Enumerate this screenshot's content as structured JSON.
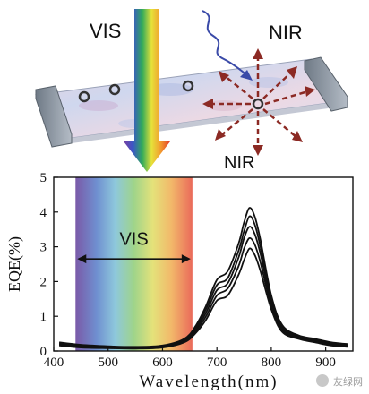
{
  "labels": {
    "vis_top": "VIS",
    "nir_top": "NIR",
    "nir_bottom": "NIR",
    "vis_band": "VIS",
    "watermark": "友绿网"
  },
  "colors": {
    "axis": "#111111",
    "curve": "#111111",
    "slab_top": "#e9d6e0",
    "slab_edge": "#8f9aa6",
    "nir_arrow": "#8c2a24",
    "squiggle": "#3a4aa8"
  },
  "chart_data": {
    "type": "line",
    "xlabel": "Wavelength(nm)",
    "ylabel": "EQE(%)",
    "xlim": [
      400,
      950
    ],
    "ylim": [
      0,
      5
    ],
    "xticks": [
      400,
      500,
      600,
      700,
      800,
      900
    ],
    "yticks": [
      0,
      1,
      2,
      3,
      4,
      5
    ],
    "vis_band": [
      440,
      655
    ],
    "x": [
      410,
      450,
      500,
      550,
      600,
      640,
      660,
      680,
      700,
      720,
      740,
      750,
      760,
      770,
      780,
      800,
      820,
      850,
      880,
      910,
      940
    ],
    "series": [
      {
        "values": [
          0.25,
          0.18,
          0.14,
          0.12,
          0.16,
          0.35,
          0.7,
          1.3,
          2.05,
          2.3,
          3.1,
          3.7,
          4.12,
          3.85,
          3.2,
          1.6,
          0.75,
          0.45,
          0.35,
          0.25,
          0.2
        ]
      },
      {
        "values": [
          0.22,
          0.15,
          0.12,
          0.1,
          0.14,
          0.32,
          0.65,
          1.2,
          1.9,
          2.1,
          2.9,
          3.45,
          3.88,
          3.62,
          3.0,
          1.5,
          0.7,
          0.42,
          0.32,
          0.22,
          0.18
        ]
      },
      {
        "values": [
          0.2,
          0.14,
          0.1,
          0.09,
          0.12,
          0.3,
          0.6,
          1.1,
          1.75,
          1.95,
          2.7,
          3.25,
          3.58,
          3.35,
          2.8,
          1.4,
          0.65,
          0.4,
          0.3,
          0.2,
          0.16
        ]
      },
      {
        "values": [
          0.18,
          0.12,
          0.09,
          0.08,
          0.11,
          0.28,
          0.55,
          1.0,
          1.6,
          1.8,
          2.45,
          2.95,
          3.25,
          3.05,
          2.55,
          1.3,
          0.6,
          0.38,
          0.28,
          0.18,
          0.14
        ]
      },
      {
        "values": [
          0.16,
          0.1,
          0.08,
          0.07,
          0.1,
          0.25,
          0.5,
          0.9,
          1.45,
          1.6,
          2.2,
          2.62,
          2.95,
          2.75,
          2.3,
          1.2,
          0.55,
          0.35,
          0.25,
          0.16,
          0.12
        ]
      }
    ]
  }
}
